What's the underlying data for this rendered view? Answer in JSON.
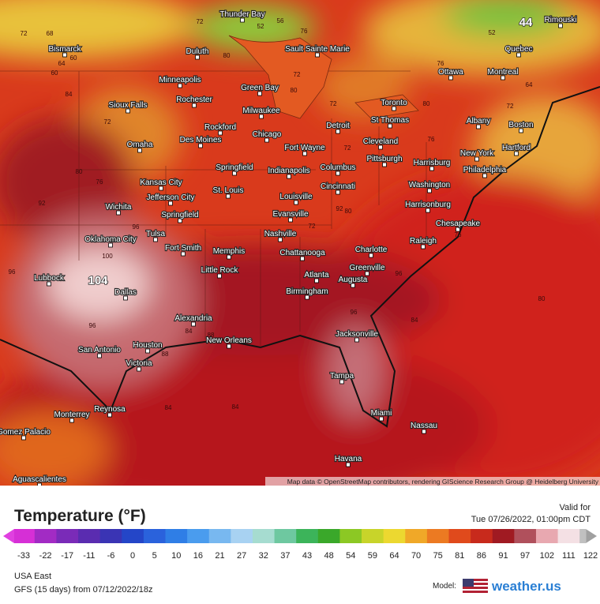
{
  "map": {
    "cities": [
      "Thunder Bay",
      "Sault Sainte Marie",
      "Rimouski",
      "Bismarck",
      "Duluth",
      "Quebec",
      "Ottawa",
      "Montreal",
      "Minneapolis",
      "Green Bay",
      "Rochester",
      "Toronto",
      "Sioux Falls",
      "Milwaukee",
      "St Thomas",
      "Albany",
      "Boston",
      "Rockford",
      "Detroit",
      "Chicago",
      "Des Moines",
      "Cleveland",
      "Omaha",
      "Fort Wayne",
      "Hartford",
      "New York",
      "Harrisburg",
      "Pittsburgh",
      "Springfield",
      "Indianapolis",
      "Columbus",
      "Philadelphia",
      "Kansas City",
      "Washington",
      "Cincinnati",
      "St. Louis",
      "Louisville",
      "Jefferson City",
      "Harrisonburg",
      "Wichita",
      "Evansville",
      "Springfield",
      "Chesapeake",
      "Nashville",
      "Tulsa",
      "Oklahoma City",
      "Raleigh",
      "Fort Smith",
      "Memphis",
      "Chattanooga",
      "Charlotte",
      "Greenville",
      "Little Rock",
      "Atlanta",
      "Lubbock",
      "Augusta",
      "Dallas",
      "Birmingham",
      "Alexandria",
      "Jacksonville",
      "New Orleans",
      "Houston",
      "San Antonio",
      "Victoria",
      "Tampa",
      "Reynosa",
      "Monterrey",
      "Miami",
      "Nassau",
      "Gomez Palacio",
      "Havana",
      "Aguascalientes"
    ],
    "contour_labels": [
      72,
      68,
      60,
      64,
      60,
      84,
      72,
      80,
      76,
      92,
      96,
      100,
      104,
      96,
      96,
      84,
      88,
      84,
      84,
      84,
      80,
      76,
      64,
      72,
      72,
      76,
      80,
      72,
      80,
      72,
      80,
      76,
      72,
      92,
      80,
      72,
      76,
      96,
      96,
      88,
      56,
      52,
      52,
      44
    ],
    "attribution": "Map data © OpenStreetMap contributors, rendering GIScience Research Group @ Heidelberg University"
  },
  "legend": {
    "title": "Temperature (°F)",
    "ticks": [
      -33,
      -22,
      -17,
      -11,
      -6,
      0,
      5,
      10,
      16,
      21,
      27,
      32,
      37,
      43,
      48,
      54,
      59,
      64,
      70,
      75,
      81,
      86,
      91,
      97,
      102,
      111,
      122
    ]
  },
  "info": {
    "valid_label": "Valid for",
    "valid_time": "Tue 07/26/2022, 01:00pm CDT",
    "region": "USA East",
    "model_run": "GFS (15 days) from 07/12/2022/18z",
    "model_label": "Model:",
    "brand": "weather.us"
  }
}
